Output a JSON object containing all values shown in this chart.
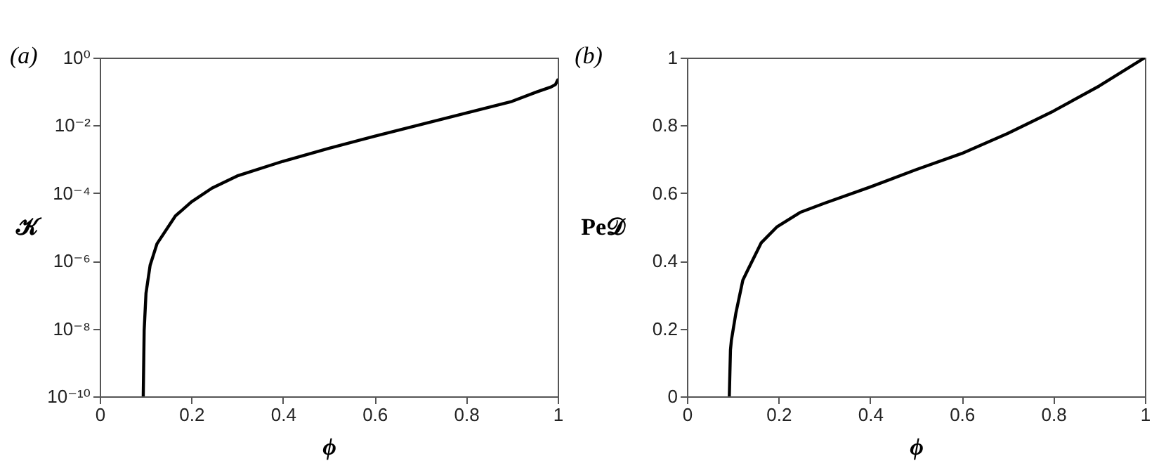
{
  "chart_data": [
    {
      "type": "line",
      "title": "(a)",
      "xlabel": "ϕ",
      "ylabel": "𝒦",
      "log": "y",
      "grid": false,
      "marker": "none",
      "line_style": "solid",
      "x": [
        0.095,
        0.097,
        0.101,
        0.11,
        0.125,
        0.165,
        0.2,
        0.245,
        0.3,
        0.4,
        0.5,
        0.6,
        0.7,
        0.8,
        0.9,
        0.955,
        0.985,
        0.995,
        1.0
      ],
      "series": [
        {
          "color": "#000000",
          "values": [
            1e-10,
            9e-09,
            1.1e-07,
            7.4e-07,
            3.2e-06,
            2.1e-05,
            5.5e-05,
            0.00014,
            0.00032,
            0.00087,
            0.0021,
            0.0048,
            0.0105,
            0.023,
            0.051,
            0.098,
            0.135,
            0.16,
            0.22
          ]
        }
      ],
      "xlim": [
        0,
        1
      ],
      "xticks": [
        0,
        0.2,
        0.4,
        0.6,
        0.8,
        1
      ],
      "ylim": [
        1e-10,
        1
      ],
      "yticks": [
        {
          "value": 1e-10,
          "label": "10⁻¹⁰"
        },
        {
          "value": 1e-08,
          "label": "10⁻⁸"
        },
        {
          "value": 1e-06,
          "label": "10⁻⁶"
        },
        {
          "value": 0.0001,
          "label": "10⁻⁴"
        },
        {
          "value": 0.01,
          "label": "10⁻²"
        },
        {
          "value": 1,
          "label": "10⁰"
        }
      ]
    },
    {
      "type": "line",
      "title": "(b)",
      "xlabel": "ϕ",
      "ylabel": "Pe𝒟",
      "grid": false,
      "marker": "none",
      "line_style": "solid",
      "x": [
        0.0925,
        0.095,
        0.097,
        0.107,
        0.122,
        0.132,
        0.162,
        0.197,
        0.247,
        0.3,
        0.4,
        0.5,
        0.6,
        0.7,
        0.8,
        0.9,
        1.0
      ],
      "series": [
        {
          "color": "#000000",
          "values": [
            0,
            0.137,
            0.165,
            0.247,
            0.343,
            0.371,
            0.453,
            0.501,
            0.543,
            0.57,
            0.618,
            0.669,
            0.717,
            0.776,
            0.842,
            0.916,
            1.0
          ]
        }
      ],
      "xlim": [
        0,
        1
      ],
      "xticks": [
        0,
        0.2,
        0.4,
        0.6,
        0.8,
        1
      ],
      "ylim": [
        0,
        1
      ],
      "yticks": [
        0,
        0.2,
        0.4,
        0.6,
        0.8,
        1
      ]
    }
  ]
}
